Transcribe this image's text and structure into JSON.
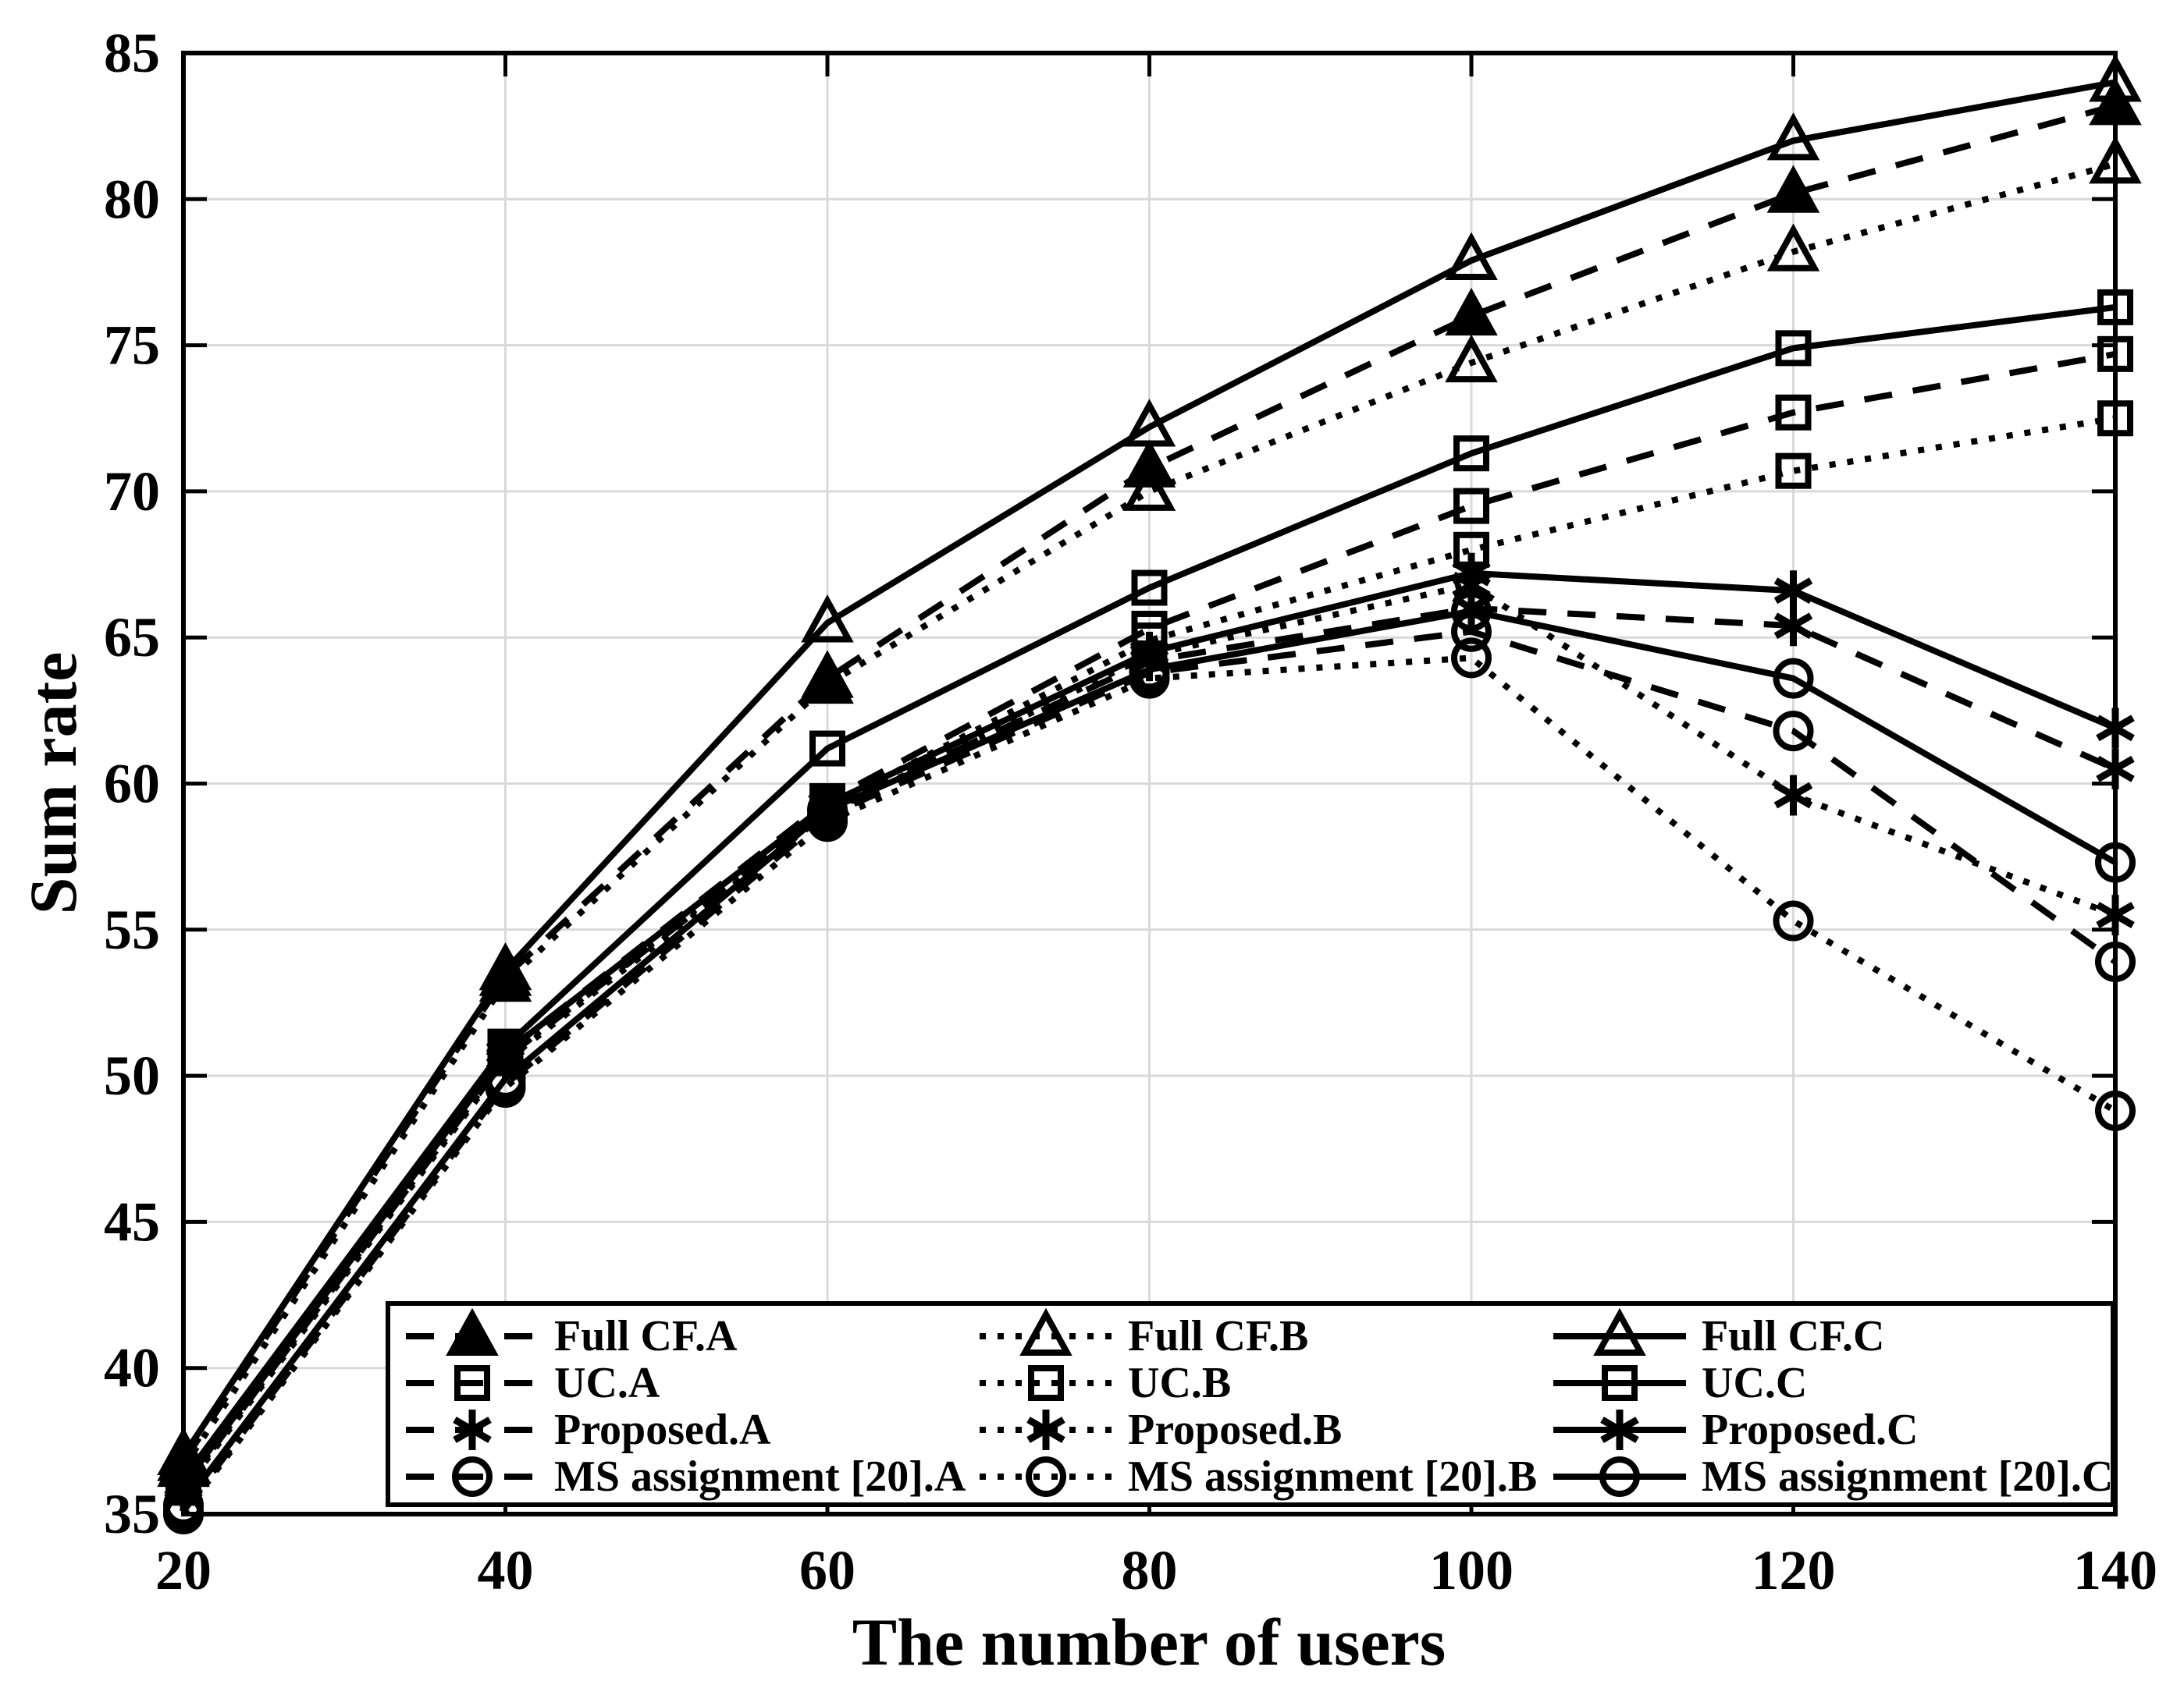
{
  "figure": {
    "background": "#ffffff",
    "line_color": "#000000",
    "grid_color": "#d9d9d9"
  },
  "chart_data": {
    "type": "line",
    "title": "",
    "xlabel": "The number of users",
    "ylabel": "Sum rate",
    "x": [
      20,
      40,
      60,
      80,
      100,
      120,
      140
    ],
    "xlim": [
      20,
      140
    ],
    "ylim": [
      35,
      85
    ],
    "xticks": [
      20,
      40,
      60,
      80,
      100,
      120,
      140
    ],
    "yticks": [
      35,
      40,
      45,
      50,
      55,
      60,
      65,
      70,
      75,
      80,
      85
    ],
    "grid": true,
    "legend_position": "bottom-center",
    "series": [
      {
        "label": "Full CF.A",
        "linestyle": "dashed",
        "marker": "triangle",
        "filled": true,
        "values": [
          36.8,
          53.4,
          63.6,
          70.8,
          76.0,
          80.2,
          83.2
        ]
      },
      {
        "label": "UC.A",
        "linestyle": "dashed",
        "marker": "square",
        "filled": false,
        "values": [
          36.0,
          50.8,
          59.4,
          65.3,
          69.5,
          72.7,
          74.7
        ]
      },
      {
        "label": "Proposed.A",
        "linestyle": "dashed",
        "marker": "asterisk",
        "filled": false,
        "values": [
          35.9,
          50.6,
          59.1,
          64.2,
          66.0,
          65.4,
          60.5
        ]
      },
      {
        "label": "MS assignment [20].A",
        "linestyle": "dashed",
        "marker": "circle",
        "filled": false,
        "values": [
          35.1,
          49.7,
          58.9,
          63.8,
          65.2,
          61.8,
          53.9
        ]
      },
      {
        "label": "Full CF.B",
        "linestyle": "dotted",
        "marker": "triangle",
        "filled": false,
        "values": [
          36.6,
          53.2,
          63.4,
          70.0,
          74.4,
          78.2,
          81.2
        ]
      },
      {
        "label": "UC.B",
        "linestyle": "dotted",
        "marker": "square",
        "filled": false,
        "values": [
          35.9,
          50.6,
          59.2,
          64.9,
          68.0,
          70.7,
          72.5
        ]
      },
      {
        "label": "Proposed.B",
        "linestyle": "dotted",
        "marker": "asterisk",
        "filled": false,
        "values": [
          35.8,
          50.5,
          59.0,
          64.4,
          66.8,
          59.6,
          55.5
        ]
      },
      {
        "label": "MS assignment [20].B",
        "linestyle": "dotted",
        "marker": "circle",
        "filled": false,
        "values": [
          35.0,
          49.6,
          58.7,
          63.6,
          64.3,
          55.3,
          48.8
        ]
      },
      {
        "label": "Full CF.C",
        "linestyle": "solid",
        "marker": "triangle",
        "filled": false,
        "values": [
          37.0,
          53.6,
          65.5,
          72.2,
          77.9,
          82.0,
          84.0
        ]
      },
      {
        "label": "UC.C",
        "linestyle": "solid",
        "marker": "square",
        "filled": false,
        "values": [
          36.2,
          51.0,
          61.2,
          66.7,
          71.3,
          74.9,
          76.3
        ]
      },
      {
        "label": "Proposed.C",
        "linestyle": "solid",
        "marker": "asterisk",
        "filled": false,
        "values": [
          36.0,
          50.8,
          59.3,
          64.5,
          67.2,
          66.6,
          61.9
        ]
      },
      {
        "label": "MS assignment [20].C",
        "linestyle": "solid",
        "marker": "circle",
        "filled": false,
        "values": [
          35.3,
          49.9,
          59.1,
          63.9,
          65.9,
          63.6,
          57.3
        ]
      }
    ],
    "legend": {
      "columns": [
        [
          "Full CF.A",
          "UC.A",
          "Proposed.A",
          "MS assignment [20].A"
        ],
        [
          "Full CF.B",
          "UC.B",
          "Proposed.B",
          "MS assignment [20].B"
        ],
        [
          "Full CF.C",
          "UC.C",
          "Proposed.C",
          "MS assignment [20].C"
        ]
      ]
    }
  }
}
